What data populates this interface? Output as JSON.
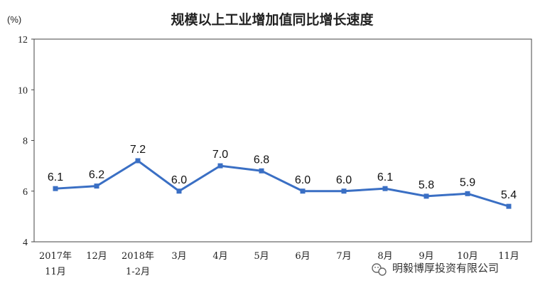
{
  "chart_data": {
    "type": "line",
    "title": "规模以上工业增加值同比增长速度",
    "unit_label": "(%)",
    "xlabel": "",
    "ylabel": "",
    "ylim": [
      4,
      12
    ],
    "yticks": [
      "4",
      "6",
      "8",
      "10",
      "12"
    ],
    "grid": false,
    "categories": [
      {
        "line1": "2017年",
        "line2": "11月"
      },
      {
        "line1": "12月",
        "line2": ""
      },
      {
        "line1": "2018年",
        "line2": "1-2月"
      },
      {
        "line1": "3月",
        "line2": ""
      },
      {
        "line1": "4月",
        "line2": ""
      },
      {
        "line1": "5月",
        "line2": ""
      },
      {
        "line1": "6月",
        "line2": ""
      },
      {
        "line1": "7月",
        "line2": ""
      },
      {
        "line1": "8月",
        "line2": ""
      },
      {
        "line1": "9月",
        "line2": ""
      },
      {
        "line1": "10月",
        "line2": ""
      },
      {
        "line1": "11月",
        "line2": ""
      }
    ],
    "values": [
      6.1,
      6.2,
      7.2,
      6.0,
      7.0,
      6.8,
      6.0,
      6.0,
      6.1,
      5.8,
      5.9,
      5.4
    ],
    "data_labels": [
      "6.1",
      "6.2",
      "7.2",
      "6.0",
      "7.0",
      "6.8",
      "6.0",
      "6.0",
      "6.1",
      "5.8",
      "5.9",
      "5.4"
    ],
    "line_color": "#3a6fc4",
    "marker_color": "#3a6fc4"
  },
  "watermark": {
    "icon": "wechat-icon",
    "text": "明毅博厚投资有限公司"
  }
}
